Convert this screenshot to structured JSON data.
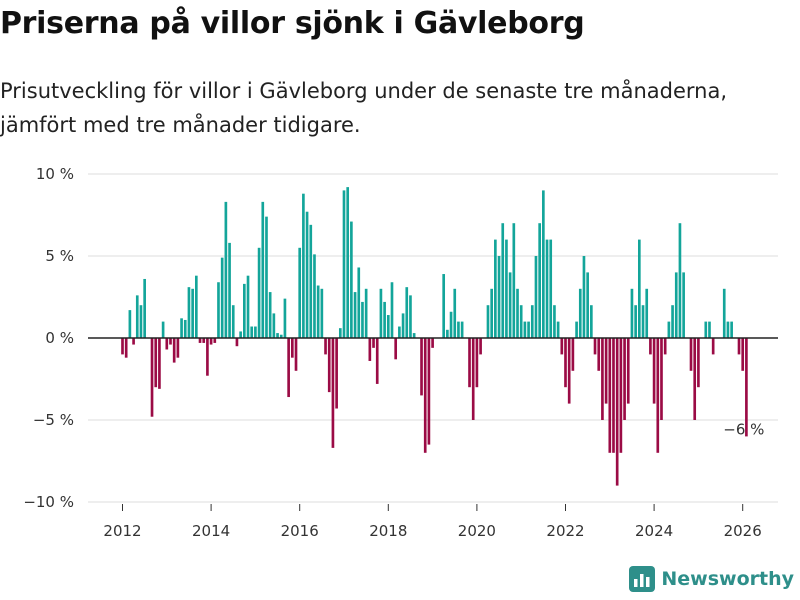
{
  "header": {
    "title": "Priserna på villor sjönk i Gävleborg",
    "subtitle": "Prisutveckling för villor i Gävleborg under de senaste tre månaderna, jämfört med tre månader tidigare."
  },
  "brand": {
    "name": "Newsworthy",
    "icon": "bar-chart-logo-icon",
    "color": "#2e8f8a"
  },
  "colors": {
    "positive": "#13a59a",
    "negative": "#9b0b45",
    "grid": "#dddddd",
    "zero_line": "#222222"
  },
  "chart_data": {
    "type": "bar",
    "title": "Priserna på villor sjönk i Gävleborg",
    "xlabel": "",
    "ylabel": "",
    "ylim": [
      -10,
      10
    ],
    "y_ticks": [
      10,
      5,
      0,
      -5,
      -10
    ],
    "y_tick_labels": [
      "10 %",
      "5 %",
      "0 %",
      "−5 %",
      "−10 %"
    ],
    "x_ticks": [
      2012,
      2014,
      2016,
      2018,
      2020,
      2022,
      2024,
      2026
    ],
    "x_tick_labels": [
      "2012",
      "2014",
      "2016",
      "2018",
      "2020",
      "2022",
      "2024",
      "2026"
    ],
    "start": {
      "year": 2012,
      "month": 1
    },
    "frequency": "monthly",
    "values": [
      -1.0,
      -1.2,
      1.7,
      -0.4,
      2.6,
      2.0,
      3.6,
      0.0,
      -4.8,
      -3.0,
      -3.1,
      1.0,
      -0.7,
      -0.4,
      -1.5,
      -1.2,
      1.2,
      1.1,
      3.1,
      3.0,
      3.8,
      -0.3,
      -0.3,
      -2.3,
      -0.4,
      -0.3,
      3.4,
      4.9,
      8.3,
      5.8,
      2.0,
      -0.5,
      0.4,
      3.3,
      3.8,
      0.7,
      0.7,
      5.5,
      8.3,
      7.4,
      2.8,
      1.5,
      0.3,
      0.2,
      2.4,
      -3.6,
      -1.2,
      -2.0,
      5.5,
      8.8,
      7.7,
      6.9,
      5.1,
      3.2,
      3.0,
      -1.0,
      -3.3,
      -6.7,
      -4.3,
      0.6,
      9.0,
      9.2,
      7.1,
      2.8,
      4.3,
      2.2,
      3.0,
      -1.4,
      -0.6,
      -2.8,
      3.0,
      2.2,
      1.4,
      3.4,
      -1.3,
      0.7,
      1.5,
      3.1,
      2.6,
      0.3,
      0.0,
      -3.5,
      -7.0,
      -6.5,
      -0.6,
      0.0,
      0.0,
      3.9,
      0.5,
      1.6,
      3.0,
      1.0,
      1.0,
      0.0,
      -3.0,
      -5.0,
      -3.0,
      -1.0,
      0.0,
      2.0,
      3.0,
      6.0,
      5.0,
      7.0,
      6.0,
      4.0,
      7.0,
      3.0,
      2.0,
      1.0,
      1.0,
      2.0,
      5.0,
      7.0,
      9.0,
      6.0,
      6.0,
      2.0,
      1.0,
      -1.0,
      -3.0,
      -4.0,
      -2.0,
      1.0,
      3.0,
      5.0,
      4.0,
      2.0,
      -1.0,
      -2.0,
      -5.0,
      -4.0,
      -7.0,
      -7.0,
      -9.0,
      -7.0,
      -5.0,
      -4.0,
      3.0,
      2.0,
      6.0,
      2.0,
      3.0,
      -1.0,
      -4.0,
      -7.0,
      -5.0,
      -1.0,
      1.0,
      2.0,
      4.0,
      7.0,
      4.0,
      0.0,
      -2.0,
      -5.0,
      -3.0,
      0.0,
      1.0,
      1.0,
      -1.0,
      0.0,
      0.0,
      3.0,
      1.0,
      1.0,
      0.0,
      -1.0,
      -2.0,
      -6.0
    ],
    "annotation": {
      "text": "−6 %",
      "target": "last"
    }
  }
}
